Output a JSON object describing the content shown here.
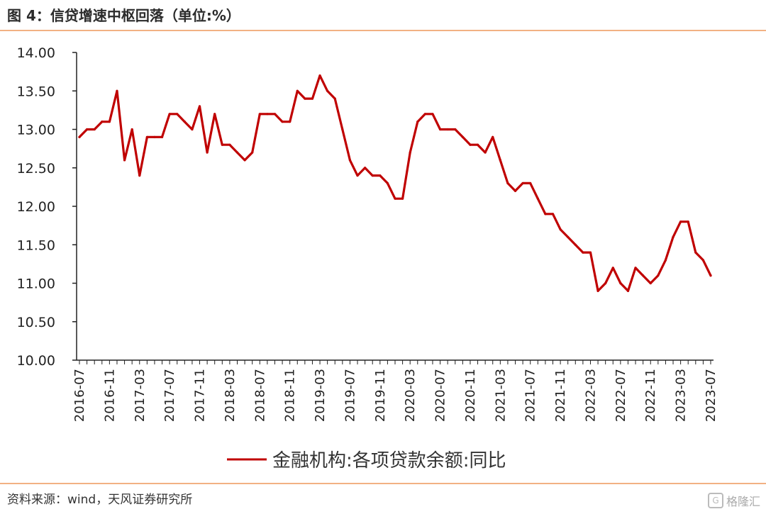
{
  "header": {
    "title": "图 4：信贷增速中枢回落（单位:%）"
  },
  "footer": {
    "source": "资料来源：wind，天风证券研究所",
    "watermark": "格隆汇"
  },
  "colors": {
    "line": "#c00000",
    "rule": "#f2b183"
  },
  "chart_data": {
    "type": "line",
    "title": "",
    "xlabel": "",
    "ylabel": "",
    "ylim": [
      10.0,
      14.0
    ],
    "ytick_labels": [
      "10.00",
      "10.50",
      "11.00",
      "11.50",
      "12.00",
      "12.50",
      "13.00",
      "13.50",
      "14.00"
    ],
    "xtick_labels": [
      "2016-07",
      "2016-11",
      "2017-03",
      "2017-07",
      "2017-11",
      "2018-03",
      "2018-07",
      "2018-11",
      "2019-03",
      "2019-07",
      "2019-11",
      "2020-03",
      "2020-07",
      "2020-11",
      "2021-03",
      "2021-07",
      "2021-11",
      "2022-03",
      "2022-07",
      "2022-11",
      "2023-03",
      "2023-07"
    ],
    "legend_position": "bottom-center",
    "grid": false,
    "series": [
      {
        "name": "金融机构:各项贷款余额:同比",
        "x": [
          "2016-07",
          "2016-08",
          "2016-09",
          "2016-10",
          "2016-11",
          "2016-12",
          "2017-01",
          "2017-02",
          "2017-03",
          "2017-04",
          "2017-05",
          "2017-06",
          "2017-07",
          "2017-08",
          "2017-09",
          "2017-10",
          "2017-11",
          "2017-12",
          "2018-01",
          "2018-02",
          "2018-03",
          "2018-04",
          "2018-05",
          "2018-06",
          "2018-07",
          "2018-08",
          "2018-09",
          "2018-10",
          "2018-11",
          "2018-12",
          "2019-01",
          "2019-02",
          "2019-03",
          "2019-04",
          "2019-05",
          "2019-06",
          "2019-07",
          "2019-08",
          "2019-09",
          "2019-10",
          "2019-11",
          "2019-12",
          "2020-01",
          "2020-02",
          "2020-03",
          "2020-04",
          "2020-05",
          "2020-06",
          "2020-07",
          "2020-08",
          "2020-09",
          "2020-10",
          "2020-11",
          "2020-12",
          "2021-01",
          "2021-02",
          "2021-03",
          "2021-04",
          "2021-05",
          "2021-06",
          "2021-07",
          "2021-08",
          "2021-09",
          "2021-10",
          "2021-11",
          "2021-12",
          "2022-01",
          "2022-02",
          "2022-03",
          "2022-04",
          "2022-05",
          "2022-06",
          "2022-07",
          "2022-08",
          "2022-09",
          "2022-10",
          "2022-11",
          "2022-12",
          "2023-01",
          "2023-02",
          "2023-03",
          "2023-04",
          "2023-05",
          "2023-06",
          "2023-07"
        ],
        "values": [
          12.9,
          13.0,
          13.0,
          13.1,
          13.1,
          13.5,
          12.6,
          13.0,
          12.4,
          12.9,
          12.9,
          12.9,
          13.2,
          13.2,
          13.1,
          13.0,
          13.3,
          12.7,
          13.2,
          12.8,
          12.8,
          12.7,
          12.6,
          12.7,
          13.2,
          13.2,
          13.2,
          13.1,
          13.1,
          13.5,
          13.4,
          13.4,
          13.7,
          13.5,
          13.4,
          13.0,
          12.6,
          12.4,
          12.5,
          12.4,
          12.4,
          12.3,
          12.1,
          12.1,
          12.7,
          13.1,
          13.2,
          13.2,
          13.0,
          13.0,
          13.0,
          12.9,
          12.8,
          12.8,
          12.7,
          12.9,
          12.6,
          12.3,
          12.2,
          12.3,
          12.3,
          12.1,
          11.9,
          11.9,
          11.7,
          11.6,
          11.5,
          11.4,
          11.4,
          10.9,
          11.0,
          11.2,
          11.0,
          10.9,
          11.2,
          11.1,
          11.0,
          11.1,
          11.3,
          11.6,
          11.8,
          11.8,
          11.4,
          11.3,
          11.1
        ]
      }
    ]
  }
}
